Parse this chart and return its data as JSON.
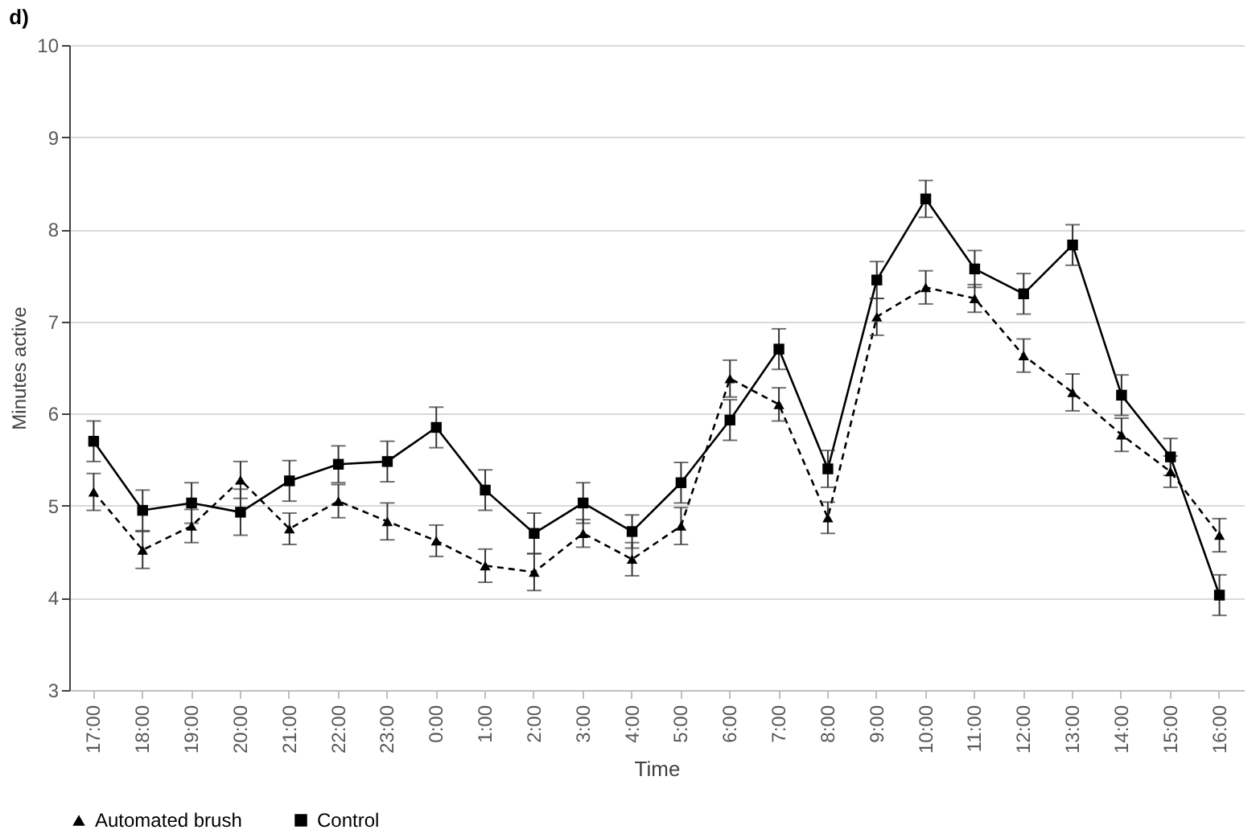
{
  "chart_data": {
    "type": "line",
    "title": "d)",
    "xlabel": "Time",
    "ylabel": "Minutes active",
    "categories": [
      "17:00",
      "18:00",
      "19:00",
      "20:00",
      "21:00",
      "22:00",
      "23:00",
      "0:00",
      "1:00",
      "2:00",
      "3:00",
      "4:00",
      "5:00",
      "6:00",
      "7:00",
      "8:00",
      "9:00",
      "10:00",
      "11:00",
      "12:00",
      "13:00",
      "14:00",
      "15:00",
      "16:00"
    ],
    "series": [
      {
        "name": "Automated brush",
        "color": "#000000",
        "marker": "triangle",
        "line_style": "dashed",
        "values": [
          5.15,
          4.52,
          4.78,
          5.28,
          4.75,
          5.05,
          4.83,
          4.62,
          4.35,
          4.28,
          4.7,
          4.42,
          4.78,
          6.38,
          6.1,
          4.87,
          7.05,
          7.37,
          7.25,
          6.63,
          6.23,
          5.77,
          5.37,
          4.68
        ],
        "errors": [
          0.2,
          0.2,
          0.18,
          0.2,
          0.17,
          0.18,
          0.2,
          0.17,
          0.18,
          0.2,
          0.15,
          0.18,
          0.2,
          0.2,
          0.18,
          0.17,
          0.2,
          0.18,
          0.15,
          0.18,
          0.2,
          0.18,
          0.17,
          0.18
        ]
      },
      {
        "name": "Control",
        "color": "#000000",
        "marker": "square",
        "line_style": "solid",
        "values": [
          5.7,
          4.95,
          5.03,
          4.93,
          5.27,
          5.45,
          5.48,
          5.85,
          5.17,
          4.7,
          5.03,
          4.72,
          5.25,
          5.93,
          6.7,
          5.4,
          7.45,
          8.33,
          7.57,
          7.3,
          7.83,
          6.2,
          5.53,
          4.03
        ],
        "errors": [
          0.22,
          0.22,
          0.22,
          0.25,
          0.22,
          0.2,
          0.22,
          0.22,
          0.22,
          0.22,
          0.22,
          0.18,
          0.22,
          0.22,
          0.22,
          0.2,
          0.2,
          0.2,
          0.2,
          0.22,
          0.22,
          0.22,
          0.2,
          0.22
        ]
      }
    ],
    "ylim": [
      3,
      10
    ],
    "yticks": [
      3,
      4,
      5,
      6,
      7,
      8,
      9,
      10
    ],
    "grid": "y",
    "legend": "bottom"
  }
}
